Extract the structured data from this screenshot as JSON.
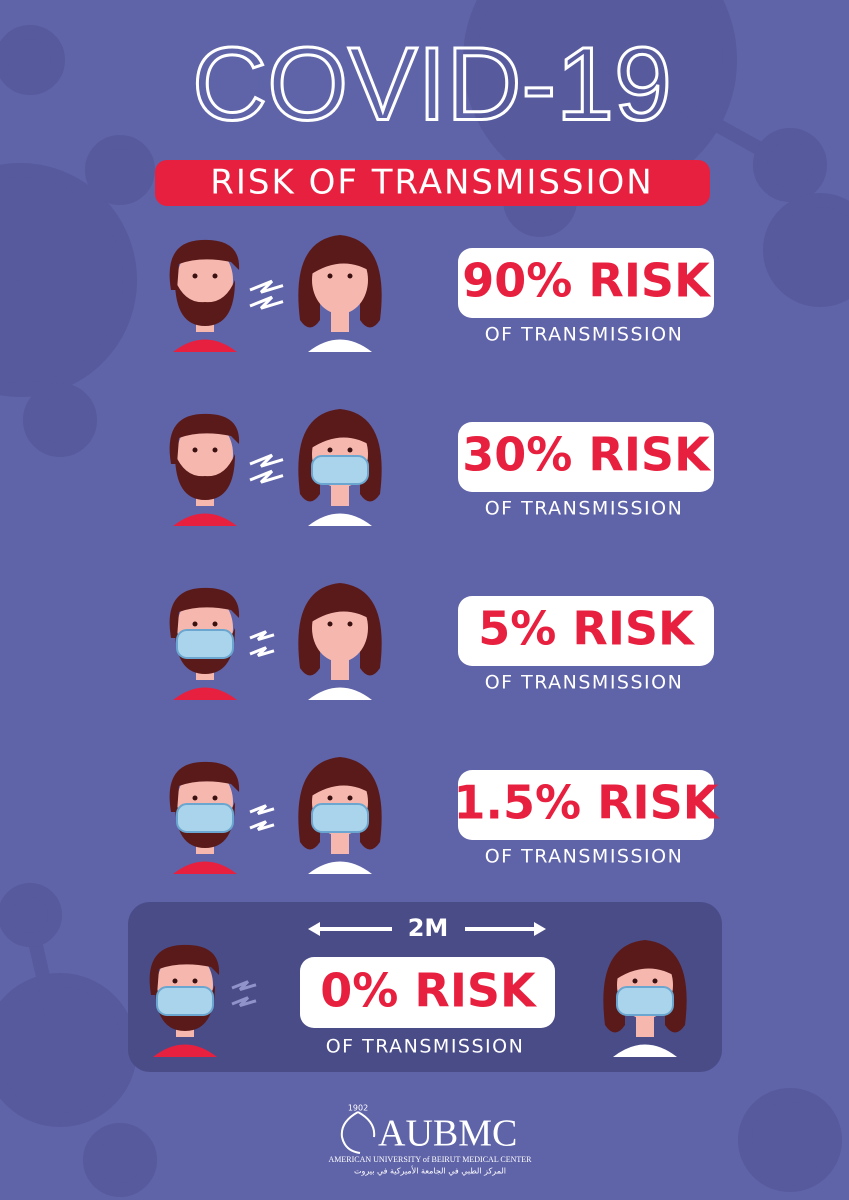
{
  "header": {
    "title": "COVID-19",
    "subtitle": "RISK OF TRANSMISSION"
  },
  "scenarios": [
    {
      "risk": "90% RISK",
      "caption": "OF TRANSMISSION"
    },
    {
      "risk": "30% RISK",
      "caption": "OF TRANSMISSION"
    },
    {
      "risk": "5% RISK",
      "caption": "OF TRANSMISSION"
    },
    {
      "risk": "1.5% RISK",
      "caption": "OF TRANSMISSION"
    }
  ],
  "distanced": {
    "distance": "2M",
    "risk": "0% RISK",
    "caption": "OF TRANSMISSION"
  },
  "footer": {
    "founded": "1902",
    "logo": "AUBMC",
    "name_en": "AMERICAN UNIVERSITY of BEIRUT MEDICAL CENTER",
    "name_ar": "المركز الطبي في الجامعة الأميركية في بيروت"
  }
}
